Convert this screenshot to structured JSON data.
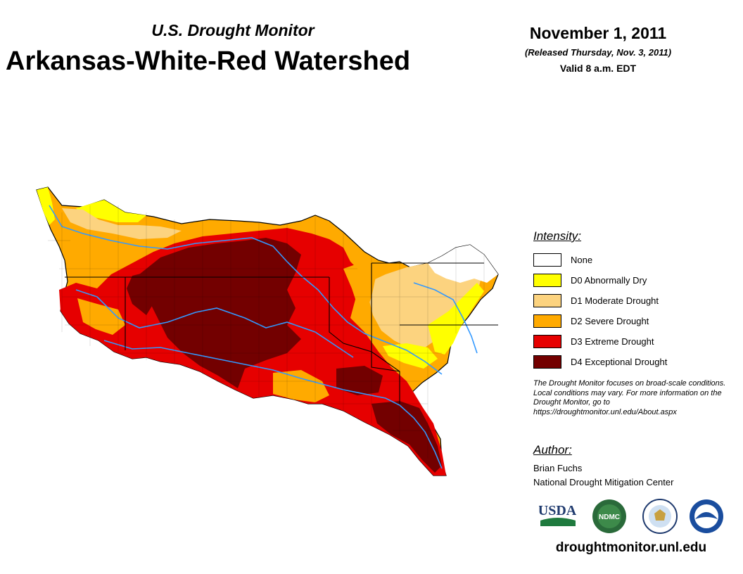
{
  "header": {
    "subtitle": "U.S. Drought Monitor",
    "title": "Arkansas-White-Red Watershed",
    "date": "November 1, 2011",
    "released": "(Released Thursday, Nov. 3, 2011)",
    "valid": "Valid 8 a.m. EDT"
  },
  "legend": {
    "heading": "Intensity:",
    "items": [
      {
        "label": "None",
        "color": "#ffffff"
      },
      {
        "label": "D0 Abnormally Dry",
        "color": "#ffff00"
      },
      {
        "label": "D1 Moderate Drought",
        "color": "#fcd37f"
      },
      {
        "label": "D2 Severe Drought",
        "color": "#ffaa00"
      },
      {
        "label": "D3 Extreme Drought",
        "color": "#e60000"
      },
      {
        "label": "D4 Exceptional Drought",
        "color": "#730000"
      }
    ]
  },
  "note": "The Drought Monitor focuses on broad-scale conditions. Local conditions may vary. For more information on the Drought Monitor, go to https://droughtmonitor.unl.edu/About.aspx",
  "author": {
    "heading": "Author:",
    "name": "Brian Fuchs",
    "org": "National Drought Mitigation Center"
  },
  "logos": {
    "usda": "USDA",
    "ndmc": "NDMC",
    "doc": "",
    "noaa": "NOAA"
  },
  "website": "droughtmonitor.unl.edu",
  "map": {
    "rivers_color": "#3399ff",
    "boundary_color": "#000000"
  }
}
